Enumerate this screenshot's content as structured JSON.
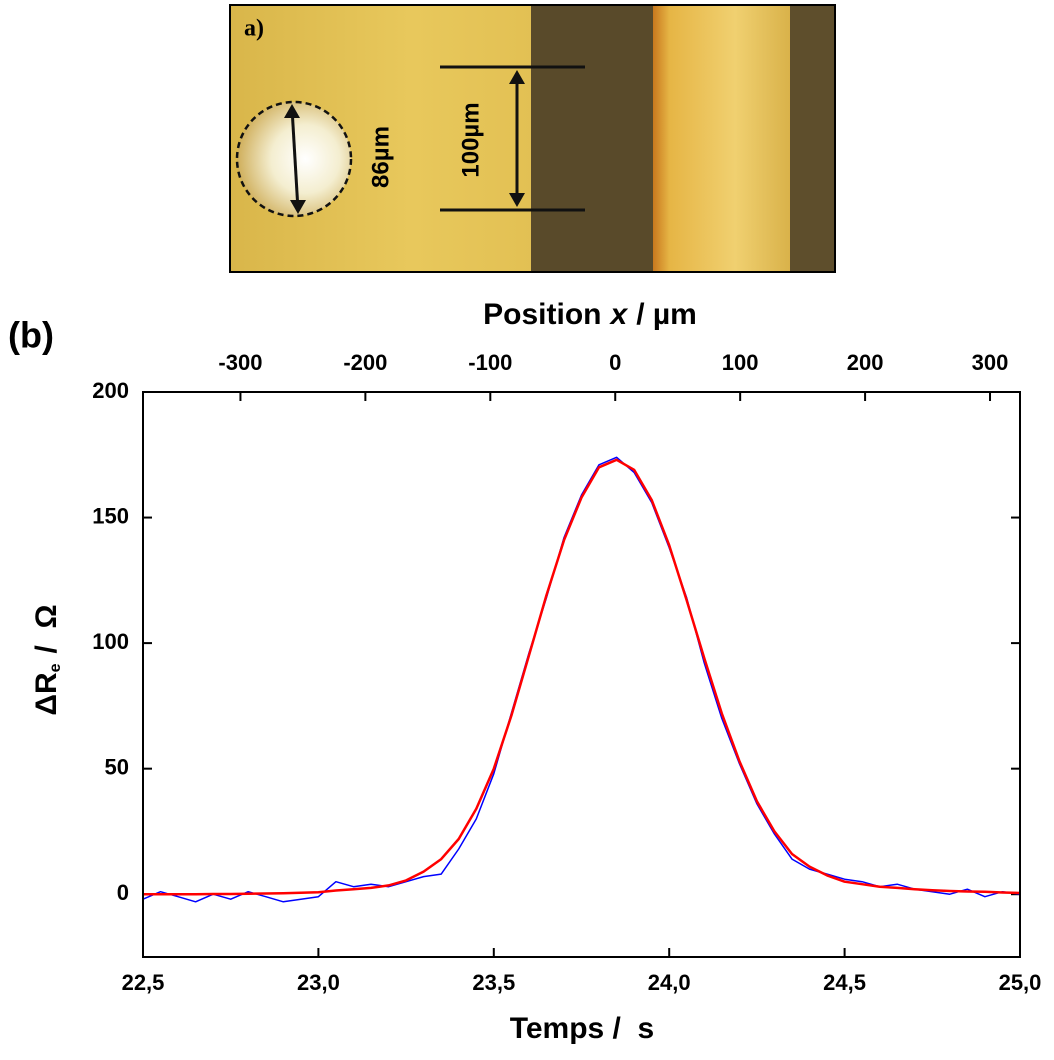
{
  "photo": {
    "label": "a)",
    "annotations": [
      "86µm",
      "100µm"
    ]
  },
  "chart_data": {
    "type": "line",
    "panel_label": "(b)",
    "x_label": "Temps /  s",
    "x2_label": [
      "Position",
      "x",
      "/ µm"
    ],
    "y_label": [
      "ΔR",
      "e",
      "/  Ω"
    ],
    "xlim": [
      22.5,
      25.0
    ],
    "xticks": [
      {
        "value": 22.5,
        "label": "22,5"
      },
      {
        "value": 23.0,
        "label": "23,0"
      },
      {
        "value": 23.5,
        "label": "23,5"
      },
      {
        "value": 24.0,
        "label": "24,0"
      },
      {
        "value": 24.5,
        "label": "24,5"
      },
      {
        "value": 25.0,
        "label": "25,0"
      }
    ],
    "x2lim": [
      -378,
      324
    ],
    "x2ticks": [
      -300,
      -200,
      -100,
      0,
      100,
      200,
      300
    ],
    "ylim": [
      -25,
      200
    ],
    "yticks": [
      0,
      50,
      100,
      150,
      200
    ],
    "x": [
      22.5,
      22.55,
      22.6,
      22.65,
      22.7,
      22.75,
      22.8,
      22.85,
      22.9,
      22.95,
      23.0,
      23.05,
      23.1,
      23.15,
      23.2,
      23.25,
      23.3,
      23.35,
      23.4,
      23.45,
      23.5,
      23.55,
      23.6,
      23.65,
      23.7,
      23.75,
      23.8,
      23.85,
      23.9,
      23.95,
      24.0,
      24.05,
      24.1,
      24.15,
      24.2,
      24.25,
      24.3,
      24.35,
      24.4,
      24.45,
      24.5,
      24.55,
      24.6,
      24.65,
      24.7,
      24.75,
      24.8,
      24.85,
      24.9,
      24.95,
      25.0
    ],
    "series": [
      {
        "color": "#0000ff",
        "values": [
          -2,
          1,
          -1,
          -3,
          0,
          -2,
          1,
          -1,
          -3,
          -2,
          -1,
          5,
          3,
          4,
          3,
          5,
          7,
          8,
          18,
          30,
          48,
          72,
          96,
          118,
          142,
          159,
          171,
          174,
          168,
          156,
          138,
          118,
          92,
          70,
          52,
          36,
          24,
          14,
          10,
          8,
          6,
          5,
          3,
          4,
          2,
          1,
          0,
          2,
          -1,
          1,
          0
        ]
      },
      {
        "color": "#ff0000",
        "values": [
          0,
          0,
          0,
          0,
          0.1,
          0.1,
          0.2,
          0.3,
          0.4,
          0.6,
          0.8,
          1.5,
          2,
          2.5,
          3.5,
          5.5,
          9,
          14,
          22,
          34,
          50,
          71,
          95,
          119,
          141,
          158,
          170,
          173,
          169,
          157,
          139,
          117,
          94,
          72,
          53,
          37,
          25,
          16,
          11,
          7.5,
          5,
          4,
          3,
          2.5,
          2,
          1.6,
          1.3,
          1.1,
          1,
          0.7,
          0.5
        ]
      }
    ]
  }
}
